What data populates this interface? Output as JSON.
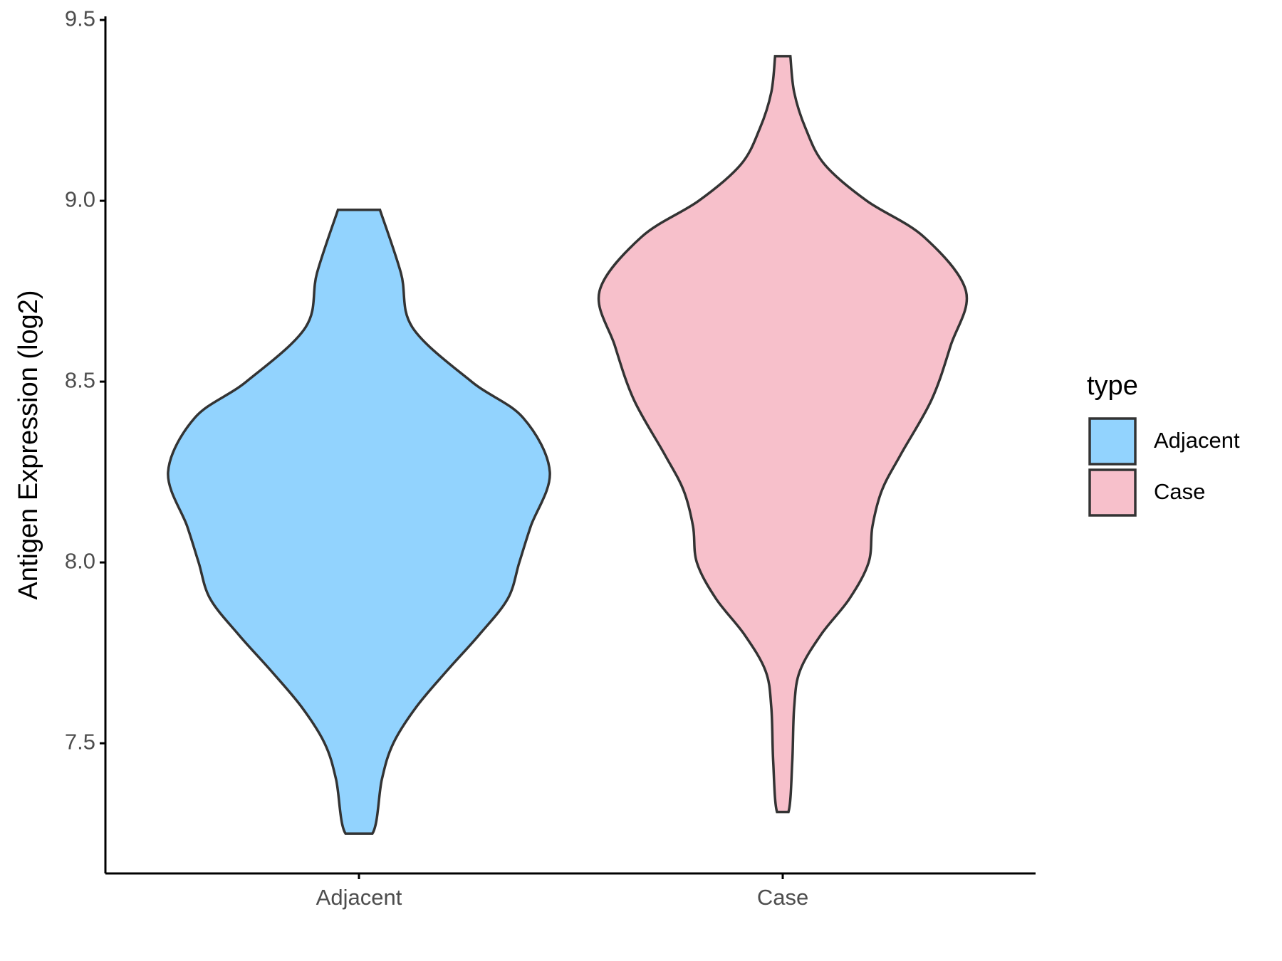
{
  "chart_data": {
    "type": "violin",
    "y_label": "Antigen Expression (log2)",
    "categories": [
      "Adjacent",
      "Case"
    ],
    "legend_title": "type",
    "series": [
      {
        "name": "Adjacent",
        "color": "#92d3fe",
        "y": [
          8.975,
          8.8,
          8.65,
          8.5,
          8.4,
          8.25,
          8.1,
          8.0,
          7.9,
          7.8,
          7.7,
          7.6,
          7.5,
          7.4,
          7.25
        ],
        "width": [
          0.11,
          0.22,
          0.28,
          0.59,
          0.86,
          1.0,
          0.9,
          0.84,
          0.78,
          0.63,
          0.46,
          0.3,
          0.18,
          0.12,
          0.07
        ]
      },
      {
        "name": "Case",
        "color": "#f7c0cb",
        "y": [
          9.4,
          9.3,
          9.2,
          9.1,
          9.0,
          8.9,
          8.75,
          8.6,
          8.45,
          8.3,
          8.2,
          8.1,
          8.0,
          7.9,
          7.8,
          7.7,
          7.6,
          7.45,
          7.31
        ],
        "width": [
          0.04,
          0.06,
          0.12,
          0.22,
          0.44,
          0.74,
          0.96,
          0.88,
          0.78,
          0.62,
          0.52,
          0.47,
          0.45,
          0.35,
          0.2,
          0.09,
          0.06,
          0.05,
          0.03
        ]
      }
    ],
    "ylim": [
      7.14,
      9.51
    ],
    "yticks": [
      {
        "value": 7.5,
        "label": "7.5"
      },
      {
        "value": 8,
        "label": "8.0"
      },
      {
        "value": 8.5,
        "label": "8.5"
      },
      {
        "value": 9,
        "label": "9.0"
      },
      {
        "value": 9.5,
        "label": "9.5"
      }
    ],
    "grid": false
  }
}
